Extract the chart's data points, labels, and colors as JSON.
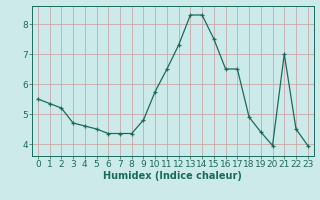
{
  "x": [
    0,
    1,
    2,
    3,
    4,
    5,
    6,
    7,
    8,
    9,
    10,
    11,
    12,
    13,
    14,
    15,
    16,
    17,
    18,
    19,
    20,
    21,
    22,
    23
  ],
  "y": [
    5.5,
    5.35,
    5.2,
    4.7,
    4.6,
    4.5,
    4.35,
    4.35,
    4.35,
    4.8,
    5.75,
    6.5,
    7.3,
    8.3,
    8.3,
    7.5,
    6.5,
    6.5,
    4.9,
    4.4,
    3.95,
    7.0,
    4.5,
    3.95
  ],
  "line_color": "#1a6b5a",
  "bg_color": "#cdeaea",
  "grid_color": "#b0d4d4",
  "tick_color": "#1a6b5a",
  "xlabel": "Humidex (Indice chaleur)",
  "ylim": [
    3.6,
    8.6
  ],
  "xlim": [
    -0.5,
    23.5
  ],
  "yticks": [
    4,
    5,
    6,
    7,
    8
  ],
  "xticks": [
    0,
    1,
    2,
    3,
    4,
    5,
    6,
    7,
    8,
    9,
    10,
    11,
    12,
    13,
    14,
    15,
    16,
    17,
    18,
    19,
    20,
    21,
    22,
    23
  ],
  "xlabel_fontsize": 7,
  "tick_fontsize": 6.5
}
